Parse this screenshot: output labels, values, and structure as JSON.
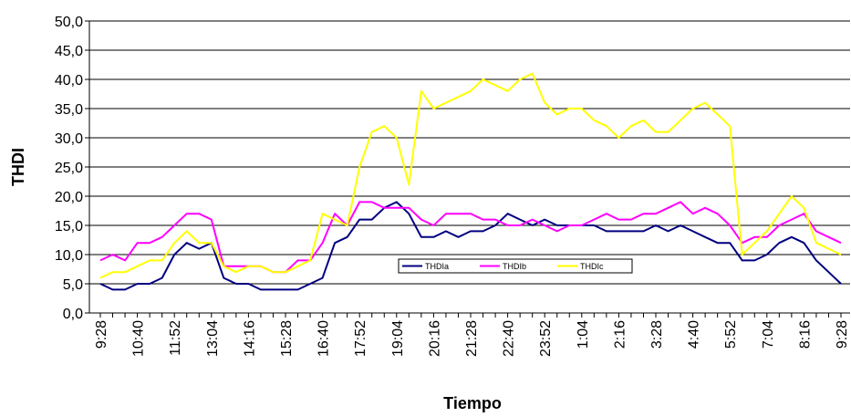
{
  "chart_data": {
    "type": "line",
    "x_label": "Tiempo",
    "y_label": "THDI",
    "categories": [
      "9:28",
      null,
      null,
      "10:40",
      null,
      null,
      "11:52",
      null,
      null,
      "13:04",
      null,
      null,
      "14:16",
      null,
      null,
      "15:28",
      null,
      null,
      "16:40",
      null,
      null,
      "17:52",
      null,
      null,
      "19:04",
      null,
      null,
      "20:16",
      null,
      null,
      "21:28",
      null,
      null,
      "22:40",
      null,
      null,
      "23:52",
      null,
      null,
      "1:04",
      null,
      null,
      "2:16",
      null,
      null,
      "3:28",
      null,
      null,
      "4:40",
      null,
      null,
      "5:52",
      null,
      null,
      "7:04",
      null,
      null,
      "8:16",
      null,
      null,
      "9:28"
    ],
    "series": [
      {
        "name": "THDIa",
        "color": "#000080",
        "values": [
          5,
          4,
          4,
          5,
          5,
          6,
          10,
          12,
          11,
          12,
          6,
          5,
          5,
          4,
          4,
          4,
          4,
          5,
          6,
          12,
          13,
          16,
          16,
          18,
          19,
          17,
          13,
          13,
          14,
          13,
          14,
          14,
          15,
          17,
          16,
          15,
          16,
          15,
          15,
          15,
          15,
          14,
          14,
          14,
          14,
          15,
          14,
          15,
          14,
          13,
          12,
          12,
          9,
          9,
          10,
          12,
          13,
          12,
          9,
          7,
          5
        ]
      },
      {
        "name": "THDIb",
        "color": "#ff00ff",
        "values": [
          9,
          10,
          9,
          12,
          12,
          13,
          15,
          17,
          17,
          16,
          8,
          8,
          8,
          8,
          7,
          7,
          9,
          9,
          12,
          17,
          15,
          19,
          19,
          18,
          18,
          18,
          16,
          15,
          17,
          17,
          17,
          16,
          16,
          15,
          15,
          16,
          15,
          14,
          15,
          15,
          16,
          17,
          16,
          16,
          17,
          17,
          18,
          19,
          17,
          18,
          17,
          15,
          12,
          13,
          13,
          15,
          16,
          17,
          14,
          13,
          12
        ]
      },
      {
        "name": "THDIc",
        "color": "#ffff00",
        "values": [
          6,
          7,
          7,
          8,
          9,
          9,
          12,
          14,
          12,
          12,
          8,
          7,
          8,
          8,
          7,
          7,
          8,
          9,
          17,
          16,
          15,
          25,
          31,
          32,
          30,
          22,
          38,
          35,
          36,
          37,
          38,
          40,
          39,
          38,
          40,
          41,
          36,
          34,
          35,
          35,
          33,
          32,
          30,
          32,
          33,
          31,
          31,
          33,
          35,
          36,
          34,
          32,
          10,
          12,
          14,
          17,
          20,
          18,
          12,
          11,
          10
        ]
      }
    ],
    "ylim": [
      0,
      50
    ],
    "yticks": [
      {
        "value": 0,
        "label": "0,0"
      },
      {
        "value": 5,
        "label": "5,0"
      },
      {
        "value": 10,
        "label": "10,0"
      },
      {
        "value": 15,
        "label": "15,0"
      },
      {
        "value": 20,
        "label": "20,0"
      },
      {
        "value": 25,
        "label": "25,0"
      },
      {
        "value": 30,
        "label": "30,0"
      },
      {
        "value": 35,
        "label": "35,0"
      },
      {
        "value": 40,
        "label": "40,0"
      },
      {
        "value": 45,
        "label": "45,0"
      },
      {
        "value": 50,
        "label": "50,0"
      }
    ],
    "grid": true,
    "legend": "bottom-center"
  }
}
